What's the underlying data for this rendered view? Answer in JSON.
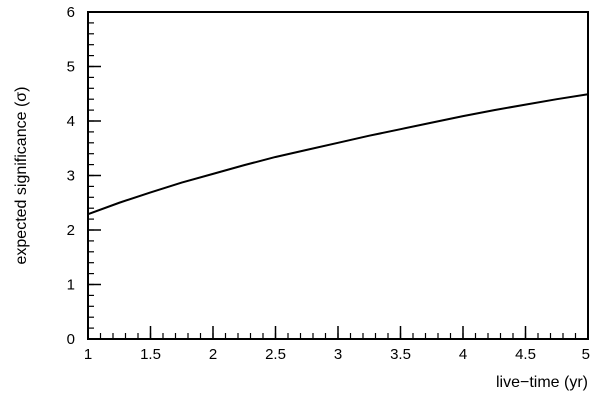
{
  "chart_data": {
    "type": "line",
    "xlabel": "live−time (yr)",
    "ylabel": "expected significance (σ)",
    "xlim": [
      1,
      5
    ],
    "ylim": [
      0,
      6
    ],
    "x_ticks": [
      "1",
      "1.5",
      "2",
      "2.5",
      "3",
      "3.5",
      "4",
      "4.5",
      "5"
    ],
    "y_ticks": [
      "0",
      "1",
      "2",
      "3",
      "4",
      "5",
      "6"
    ],
    "grid": false,
    "series": [
      {
        "x": [
          1.0,
          1.25,
          1.5,
          1.75,
          2.0,
          2.25,
          2.5,
          2.75,
          3.0,
          3.25,
          3.5,
          3.75,
          4.0,
          4.25,
          4.5,
          4.75,
          5.0
        ],
        "y": [
          2.29,
          2.5,
          2.69,
          2.87,
          3.03,
          3.19,
          3.34,
          3.47,
          3.6,
          3.73,
          3.85,
          3.97,
          4.09,
          4.2,
          4.3,
          4.4,
          4.49
        ]
      }
    ]
  }
}
